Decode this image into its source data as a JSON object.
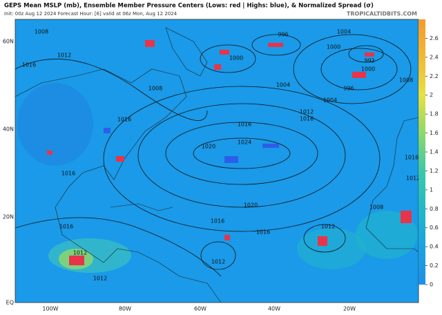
{
  "header": {
    "title": "GEPS Mean MSLP (mb), Ensemble Member Pressure Centers (Lows: red | Highs: blue), & Normalized Spread (σ)",
    "subtitle": "Init: 00z Aug 12 2024    Forecast Hour: [6]    valid at 06z Mon, Aug 12 2024",
    "source": "TROPICALTIDBITS.COM"
  },
  "latitude_labels": [
    "60N",
    "40N",
    "20N",
    "EQ"
  ],
  "longitude_labels": [
    "100W",
    "80W",
    "60W",
    "40W",
    "20W"
  ],
  "isobar_labels": [
    1008,
    1016,
    1012,
    1008,
    996,
    1000,
    1004,
    1004,
    1000,
    992,
    1000,
    996,
    1004,
    1008,
    1012,
    1016,
    1016,
    1020,
    1024,
    1016,
    1016,
    1020,
    1016,
    1016,
    1016,
    1012,
    1008,
    1012,
    1012,
    1012,
    1016,
    1012
  ],
  "colorbar": {
    "lim": [
      0,
      2.8
    ],
    "ticks": [
      0,
      0.2,
      0.4,
      0.6,
      0.8,
      1,
      1.2,
      1.4,
      1.6,
      1.8,
      2,
      2.2,
      2.4,
      2.6
    ],
    "colors": [
      "#1e8fe8",
      "#1aa3e0",
      "#22b8c8",
      "#3cc8a8",
      "#8ed86a",
      "#e8e040",
      "#f2b832",
      "#f59a2c"
    ]
  }
}
